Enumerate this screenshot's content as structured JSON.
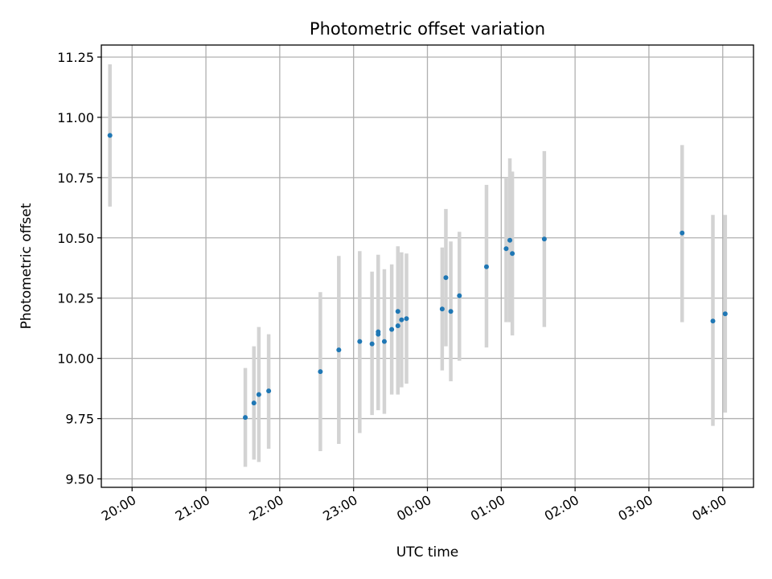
{
  "chart_data": {
    "type": "scatter",
    "title": "Photometric offset variation",
    "xlabel": "UTC time",
    "ylabel": "Photometric offset",
    "x_date": "2000-01-01",
    "xlim": [
      "19:35",
      "04:25"
    ],
    "ylim": [
      9.465,
      11.3
    ],
    "x_ticks": [
      "20:00",
      "21:00",
      "22:00",
      "23:00",
      "00:00",
      "01:00",
      "02:00",
      "03:00",
      "04:00"
    ],
    "y_ticks": [
      9.5,
      9.75,
      10.0,
      10.25,
      10.5,
      10.75,
      11.0,
      11.25
    ],
    "y_tick_labels": [
      "9.50",
      "9.75",
      "10.00",
      "10.25",
      "10.50",
      "10.75",
      "11.00",
      "11.25"
    ],
    "grid": true,
    "colors": {
      "point": "#1f77b4",
      "errorbar": "#d3d3d3",
      "grid": "#b0b0b0"
    },
    "points": [
      {
        "x": "19:42",
        "y": 10.925,
        "lo": 10.63,
        "hi": 11.22
      },
      {
        "x": "21:32",
        "y": 9.755,
        "lo": 9.55,
        "hi": 9.96
      },
      {
        "x": "21:39",
        "y": 9.815,
        "lo": 9.58,
        "hi": 10.05
      },
      {
        "x": "21:43",
        "y": 9.85,
        "lo": 9.57,
        "hi": 10.13
      },
      {
        "x": "21:51",
        "y": 9.865,
        "lo": 9.625,
        "hi": 10.1
      },
      {
        "x": "22:33",
        "y": 9.945,
        "lo": 9.615,
        "hi": 10.275
      },
      {
        "x": "22:48",
        "y": 10.035,
        "lo": 9.645,
        "hi": 10.425
      },
      {
        "x": "23:05",
        "y": 10.07,
        "lo": 9.69,
        "hi": 10.445
      },
      {
        "x": "23:15",
        "y": 10.06,
        "lo": 9.765,
        "hi": 10.36
      },
      {
        "x": "23:20",
        "y": 10.1,
        "lo": 9.785,
        "hi": 10.425
      },
      {
        "x": "23:20",
        "y": 10.11,
        "lo": 9.79,
        "hi": 10.43
      },
      {
        "x": "23:25",
        "y": 10.07,
        "lo": 9.77,
        "hi": 10.37
      },
      {
        "x": "23:31",
        "y": 10.12,
        "lo": 9.85,
        "hi": 10.39
      },
      {
        "x": "23:36",
        "y": 10.135,
        "lo": 9.85,
        "hi": 10.42
      },
      {
        "x": "23:36",
        "y": 10.195,
        "lo": 9.925,
        "hi": 10.465
      },
      {
        "x": "23:39",
        "y": 10.16,
        "lo": 9.88,
        "hi": 10.44
      },
      {
        "x": "23:43",
        "y": 10.165,
        "lo": 9.895,
        "hi": 10.435
      },
      {
        "x": "00:12",
        "y": 10.205,
        "lo": 9.95,
        "hi": 10.46
      },
      {
        "x": "00:15",
        "y": 10.335,
        "lo": 10.05,
        "hi": 10.62
      },
      {
        "x": "00:19",
        "y": 10.195,
        "lo": 9.905,
        "hi": 10.485
      },
      {
        "x": "00:26",
        "y": 10.26,
        "lo": 9.99,
        "hi": 10.525
      },
      {
        "x": "00:48",
        "y": 10.38,
        "lo": 10.045,
        "hi": 10.72
      },
      {
        "x": "01:04",
        "y": 10.455,
        "lo": 10.15,
        "hi": 10.75
      },
      {
        "x": "01:07",
        "y": 10.49,
        "lo": 10.15,
        "hi": 10.83
      },
      {
        "x": "01:09",
        "y": 10.435,
        "lo": 10.095,
        "hi": 10.775
      },
      {
        "x": "01:35",
        "y": 10.495,
        "lo": 10.13,
        "hi": 10.86
      },
      {
        "x": "03:27",
        "y": 10.52,
        "lo": 10.15,
        "hi": 10.885
      },
      {
        "x": "03:52",
        "y": 10.155,
        "lo": 9.72,
        "hi": 10.595
      },
      {
        "x": "04:02",
        "y": 10.185,
        "lo": 9.775,
        "hi": 10.595
      }
    ]
  }
}
